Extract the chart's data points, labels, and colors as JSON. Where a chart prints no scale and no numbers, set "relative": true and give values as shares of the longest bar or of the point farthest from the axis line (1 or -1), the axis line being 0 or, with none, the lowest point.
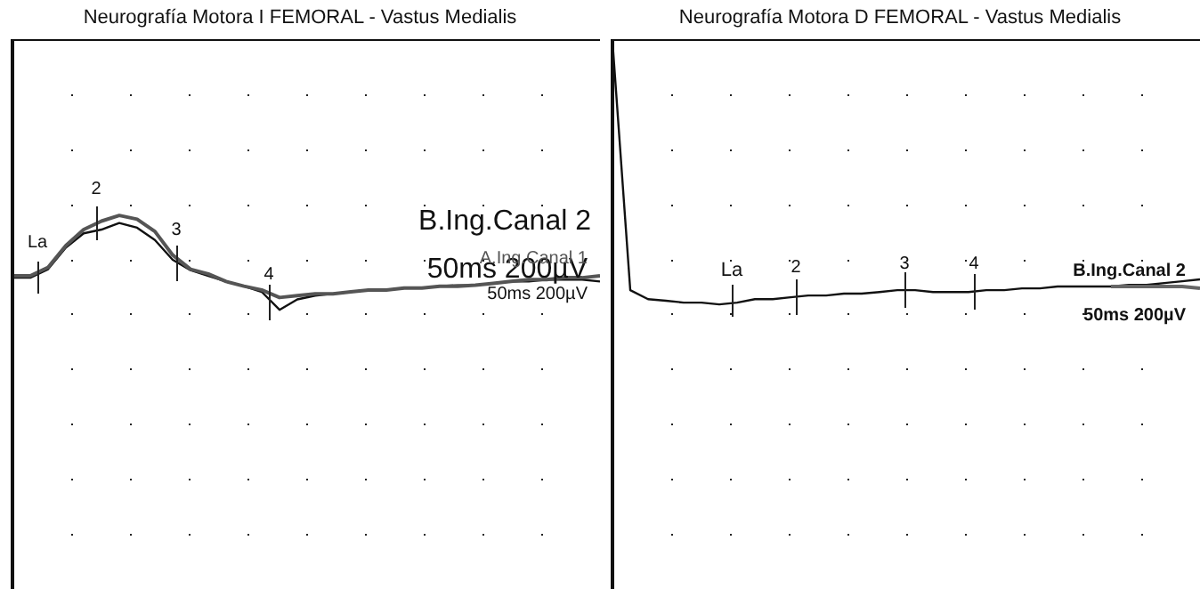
{
  "chart_data": [
    {
      "type": "line",
      "title": "Neurografía Motora I FEMORAL - Vastus Medialis",
      "relative": true,
      "marker": "none",
      "tick_labels": false,
      "categories": [
        null,
        null,
        null,
        null,
        null,
        null,
        null,
        null,
        null,
        null,
        null,
        null,
        null,
        null,
        null,
        null,
        null,
        null,
        null,
        null,
        null,
        null,
        null,
        null,
        null,
        null,
        null,
        null,
        null,
        null,
        null,
        null,
        null,
        null
      ],
      "series": [
        {
          "name": "A.Ing.Canal 1",
          "color": "#555555",
          "values": [
            0.36,
            0.36,
            0.45,
            0.68,
            0.85,
            0.94,
            1,
            0.96,
            0.83,
            0.58,
            0.43,
            0.38,
            0.3,
            0.25,
            0.21,
            0.13,
            0.15,
            0.17,
            0.17,
            0.19,
            0.21,
            0.21,
            0.23,
            0.23,
            0.25,
            0.25,
            0.26,
            0.28,
            0.3,
            0.32,
            0.32,
            0.34,
            0.34,
            0.36
          ]
        },
        {
          "name": "B.Ing.Canal 2",
          "color": "#111111",
          "values": [
            0.34,
            0.34,
            0.43,
            0.66,
            0.81,
            0.85,
            0.92,
            0.87,
            0.74,
            0.53,
            0.42,
            0.36,
            0.3,
            0.25,
            0.19,
            0,
            0.11,
            0.15,
            0.17,
            0.19,
            0.21,
            0.21,
            0.23,
            0.23,
            0.25,
            0.26,
            0.26,
            0.28,
            0.3,
            0.3,
            0.32,
            0.32,
            0.32,
            0.3
          ]
        }
      ],
      "annotations": [
        "La",
        "2",
        "3",
        "4",
        "50ms 200µV",
        "50ms 200µV"
      ]
    },
    {
      "type": "line",
      "title": "Neurografía Motora D FEMORAL - Vastus Medialis",
      "relative": true,
      "marker": "none",
      "tick_labels": false,
      "categories": [
        null,
        null,
        null,
        null,
        null,
        null,
        null,
        null,
        null,
        null,
        null,
        null,
        null,
        null,
        null,
        null,
        null,
        null,
        null,
        null,
        null,
        null,
        null,
        null,
        null,
        null,
        null,
        null,
        null,
        null,
        null,
        null,
        null,
        null
      ],
      "series": [
        {
          "color": "#666666",
          "values": [
            null,
            null,
            null,
            null,
            null,
            null,
            null,
            null,
            null,
            null,
            null,
            null,
            null,
            null,
            null,
            null,
            null,
            null,
            null,
            null,
            null,
            null,
            null,
            null,
            null,
            null,
            null,
            null,
            0.068,
            0.068,
            0.068,
            0.068,
            0.068,
            0.061
          ]
        },
        {
          "name": "B.Ing.Canal 2",
          "color": "#111111",
          "values": [
            1,
            0.054,
            0.02,
            0.014,
            0.007,
            0.007,
            0,
            0.007,
            0.02,
            0.02,
            0.027,
            0.034,
            0.034,
            0.041,
            0.041,
            0.047,
            0.054,
            0.054,
            0.047,
            0.047,
            0.047,
            0.054,
            0.054,
            0.061,
            0.061,
            0.068,
            0.068,
            0.068,
            0.068,
            0.074,
            0.074,
            0.081,
            0.088,
            0.095
          ]
        }
      ],
      "annotations": [
        "La",
        "2",
        "3",
        "4",
        "50ms 200µV"
      ]
    }
  ]
}
